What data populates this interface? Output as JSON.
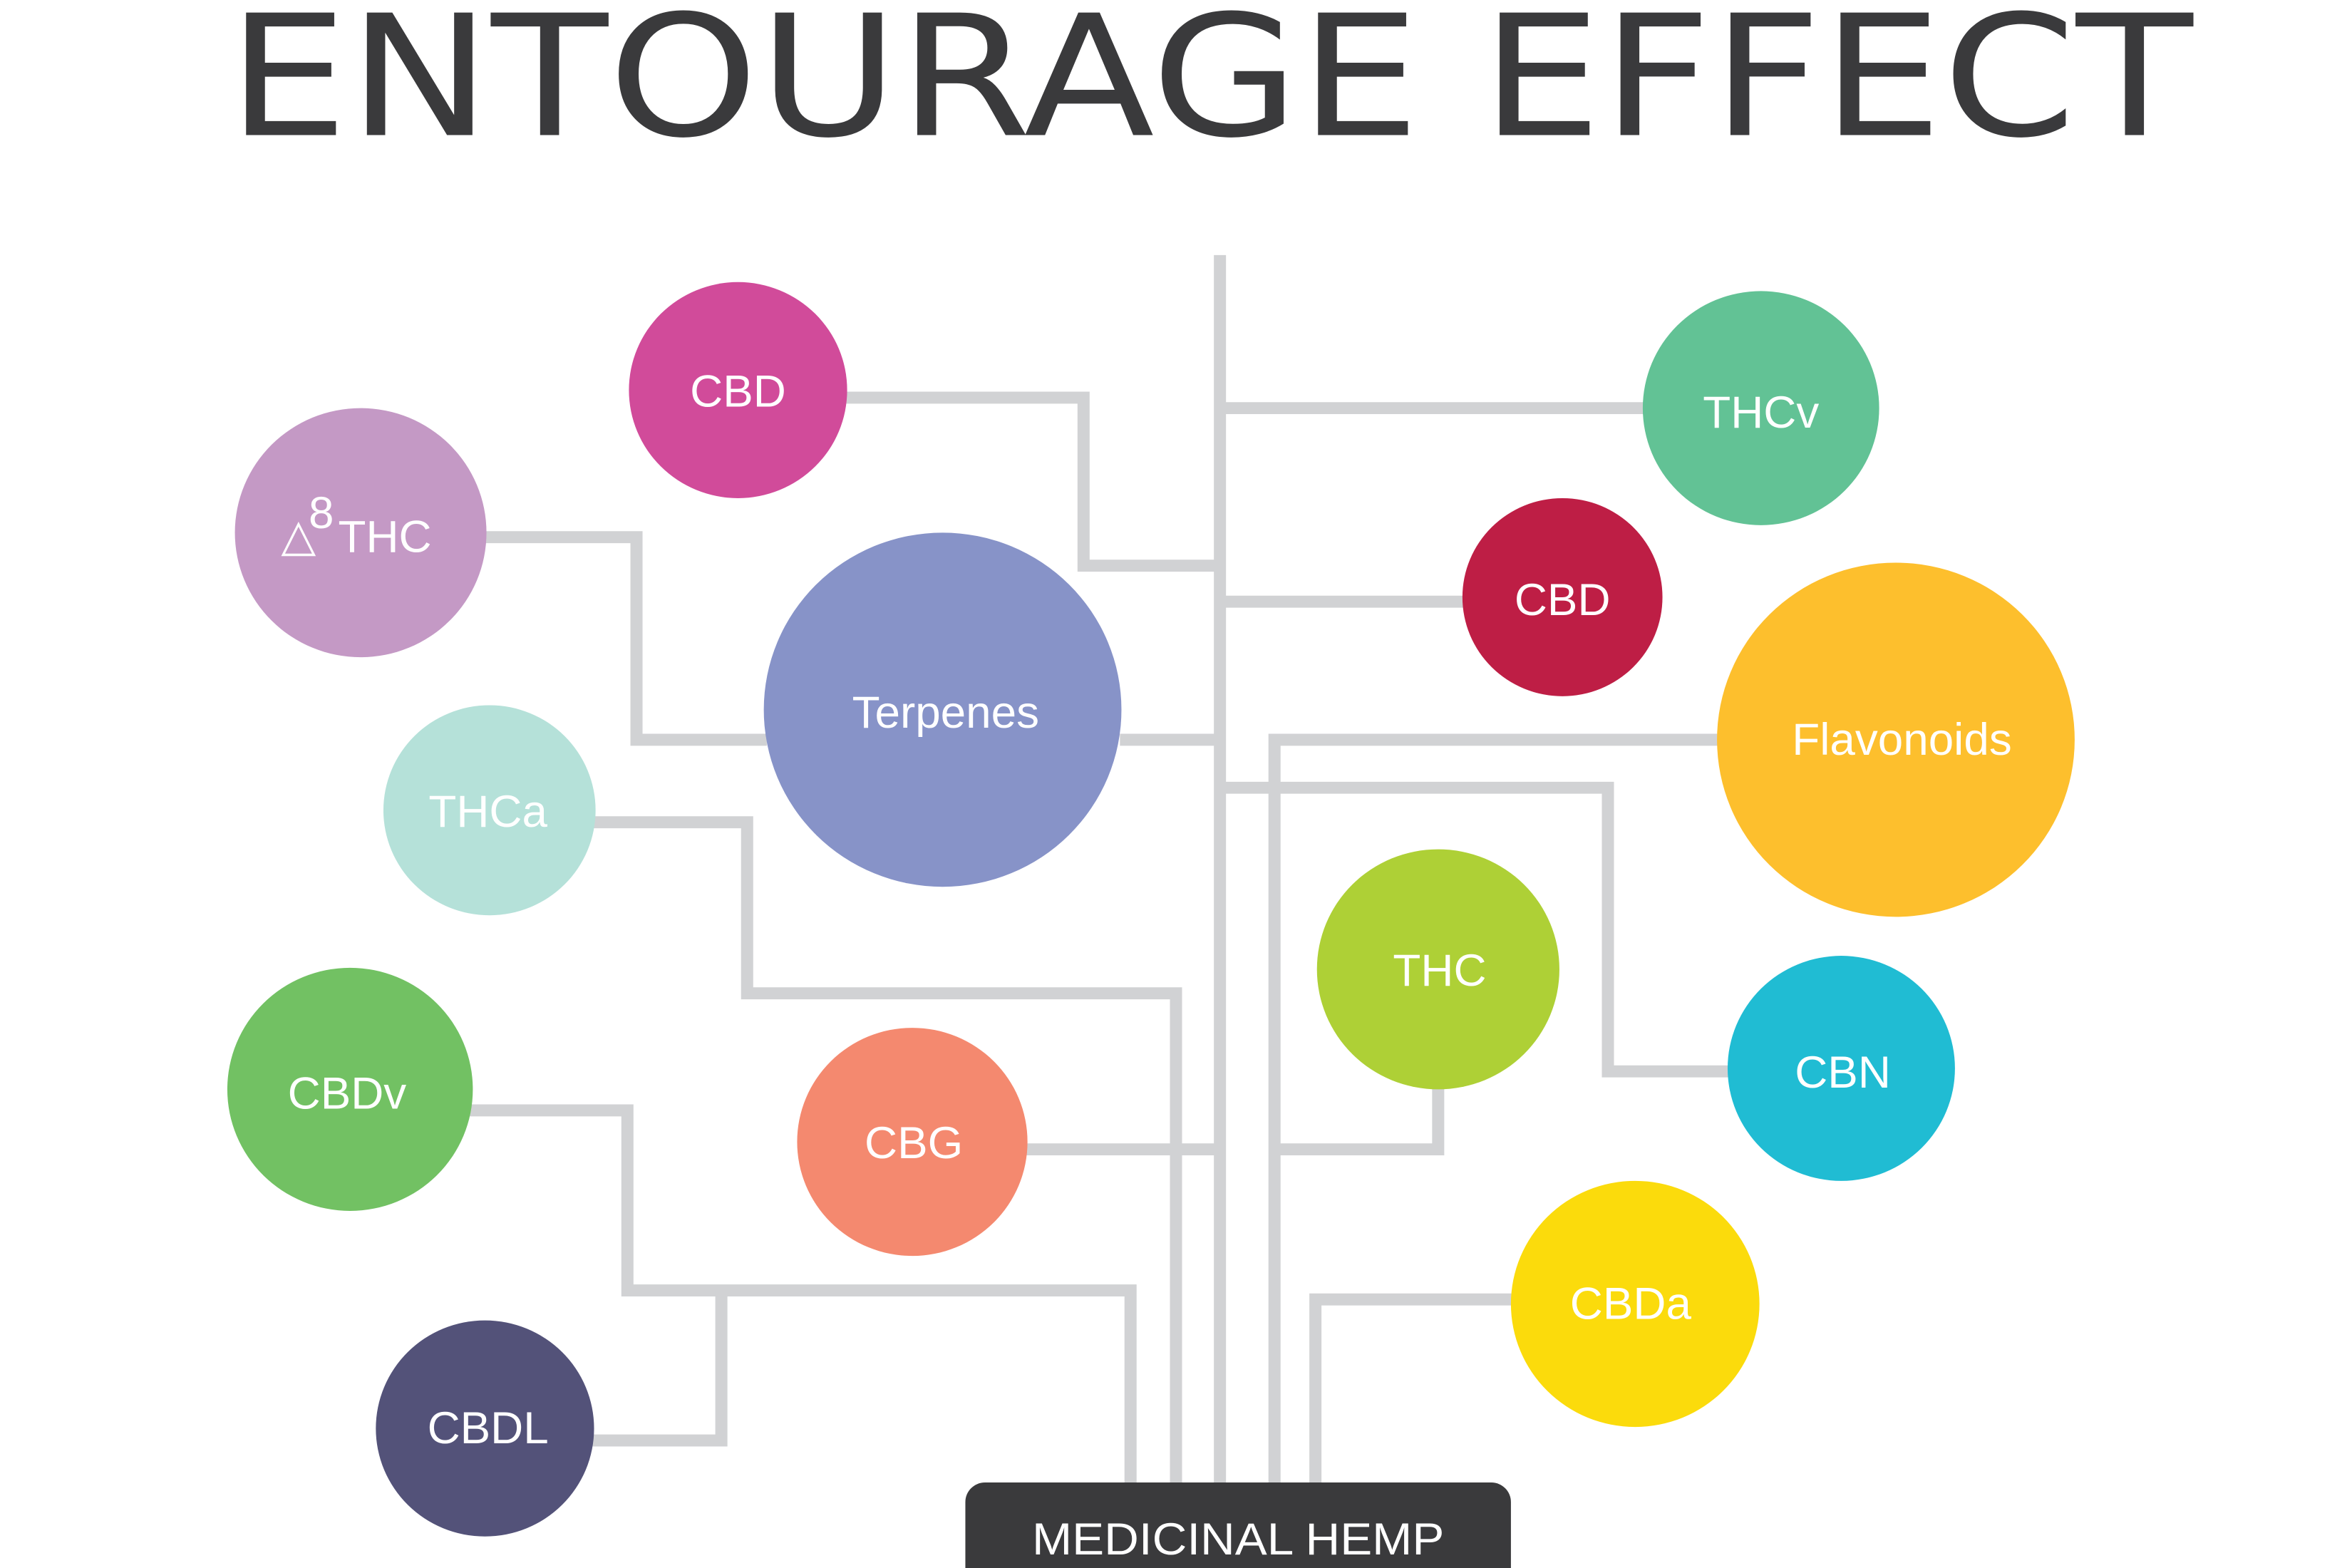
{
  "title": "ENTOURAGE EFFECT",
  "root": {
    "label": "MEDICINAL HEMP",
    "color": "#3a3a3c"
  },
  "connector_color": "#d1d2d4",
  "nodes": {
    "cbd_top": {
      "label": "CBD",
      "color": "#d14b9a"
    },
    "delta8_thc": {
      "label": "THC",
      "prefix_symbol": "△",
      "superscript": "8",
      "color": "#c499c5"
    },
    "terpenes": {
      "label": "Terpenes",
      "color": "#8793c8"
    },
    "thca": {
      "label": "THCa",
      "color": "#b5e1d9"
    },
    "cbdv": {
      "label": "CBDv",
      "color": "#72c163"
    },
    "cbdl": {
      "label": "CBDL",
      "color": "#535279"
    },
    "cbg": {
      "label": "CBG",
      "color": "#f4896f"
    },
    "thcv": {
      "label": "THCv",
      "color": "#62c295"
    },
    "cbd_red": {
      "label": "CBD",
      "color": "#be1e45"
    },
    "flavonoids": {
      "label": "Flavonoids",
      "color": "#fdbf2d"
    },
    "thc": {
      "label": "THC",
      "color": "#aed036"
    },
    "cbn": {
      "label": "CBN",
      "color": "#20bcd3"
    },
    "cbda": {
      "label": "CBDa",
      "color": "#fbdb0c"
    }
  }
}
